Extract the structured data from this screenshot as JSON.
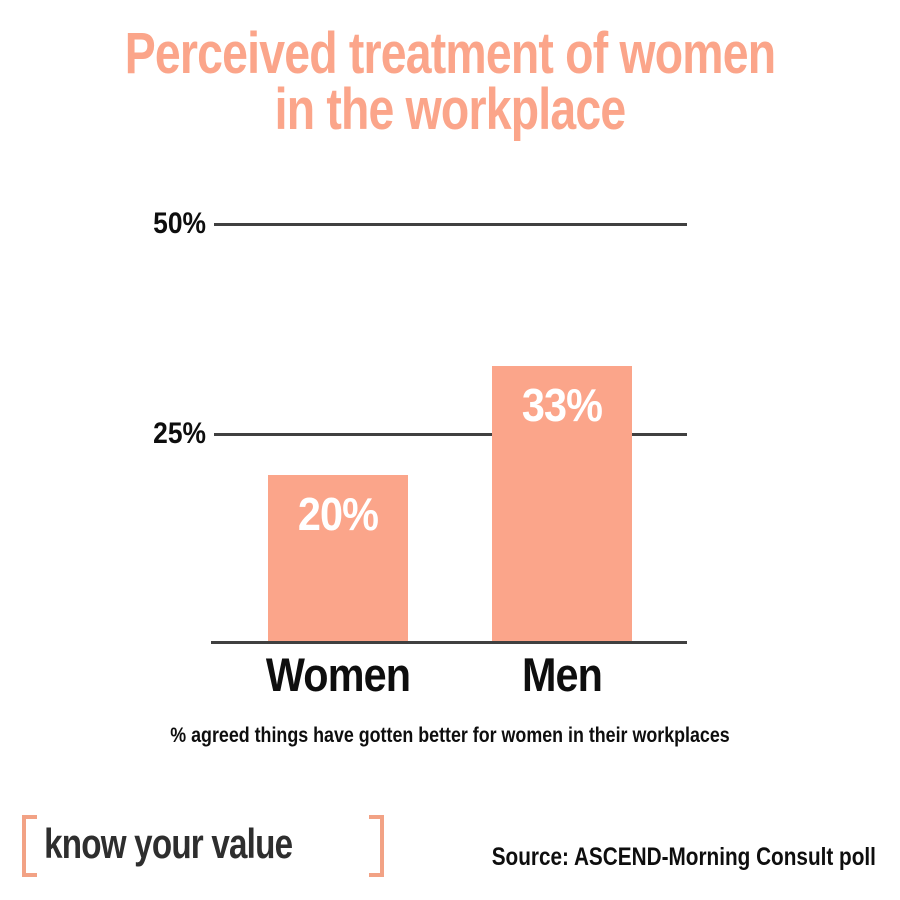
{
  "colors": {
    "salmon": "#FBA58A",
    "bracket": "#F2A285",
    "line": "#404040",
    "ink": "#0E0E0E",
    "logo_ink": "#2E2E2E"
  },
  "chart_data": {
    "type": "bar",
    "title": "Perceived treatment of women in the workplace",
    "title_lines": [
      "Perceived treatment of women",
      "in the workplace"
    ],
    "categories": [
      "Women",
      "Men"
    ],
    "values": [
      20,
      33
    ],
    "value_labels": [
      "20%",
      "33%"
    ],
    "y_gridlines": [
      {
        "value": 50,
        "label": "50%"
      },
      {
        "value": 25,
        "label": "25%"
      }
    ],
    "ylim": [
      0,
      50
    ],
    "bar_color": "#FBA58A",
    "value_label_color": "#FFFFFF",
    "grid": "horizontal gridlines at 25% and 50%, x-axis baseline",
    "legend": "none",
    "caption": "% agreed things have gotten better for women in their workplaces"
  },
  "footer": {
    "logo_text": "know your value",
    "source": "Source: ASCEND-Morning Consult poll"
  }
}
